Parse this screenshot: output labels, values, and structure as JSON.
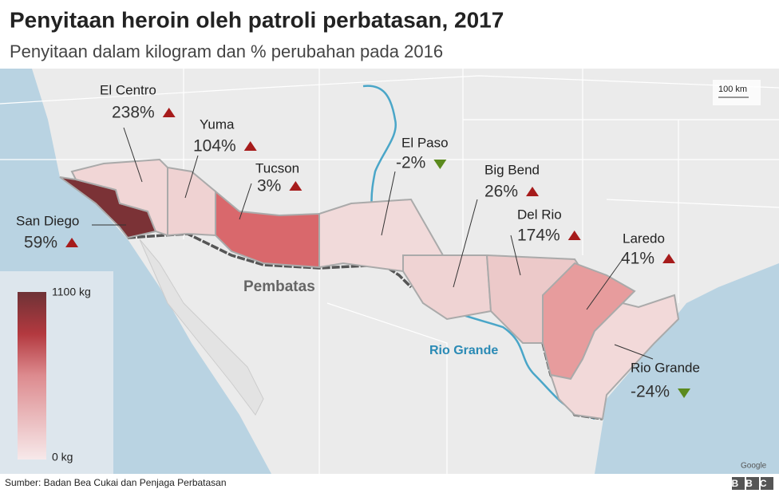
{
  "header": {
    "title": "Penyitaan heroin oleh patroli perbatasan, 2017",
    "subtitle": "Penyitaan dalam kilogram dan % perubahan pada 2016"
  },
  "sectors": [
    {
      "name": "San Diego",
      "change": "59%",
      "trend": "up",
      "color": "#7b3236"
    },
    {
      "name": "El Centro",
      "change": "238%",
      "trend": "up",
      "color": "#f1d6d6"
    },
    {
      "name": "Yuma",
      "change": "104%",
      "trend": "up",
      "color": "#efd2d2"
    },
    {
      "name": "Tucson",
      "change": "3%",
      "trend": "up",
      "color": "#d9686c"
    },
    {
      "name": "El Paso",
      "change": "-2%",
      "trend": "down",
      "color": "#f1dada"
    },
    {
      "name": "Big Bend",
      "change": "26%",
      "trend": "up",
      "color": "#efd3d3"
    },
    {
      "name": "Del Rio",
      "change": "174%",
      "trend": "up",
      "color": "#ecc9c9"
    },
    {
      "name": "Laredo",
      "change": "41%",
      "trend": "up",
      "color": "#e79c9d"
    },
    {
      "name": "Rio Grande",
      "change": "-24%",
      "trend": "down",
      "color": "#f2d9d9"
    }
  ],
  "legend": {
    "max": "1100 kg",
    "min": "0 kg"
  },
  "map_labels": {
    "border": "Pembatas",
    "river": "Rio Grande",
    "scale": "100 km",
    "attribution": "Google"
  },
  "footer": {
    "source": "Sumber: Badan Bea Cukai dan Penjaga Perbatasan",
    "logo": "BBC"
  }
}
